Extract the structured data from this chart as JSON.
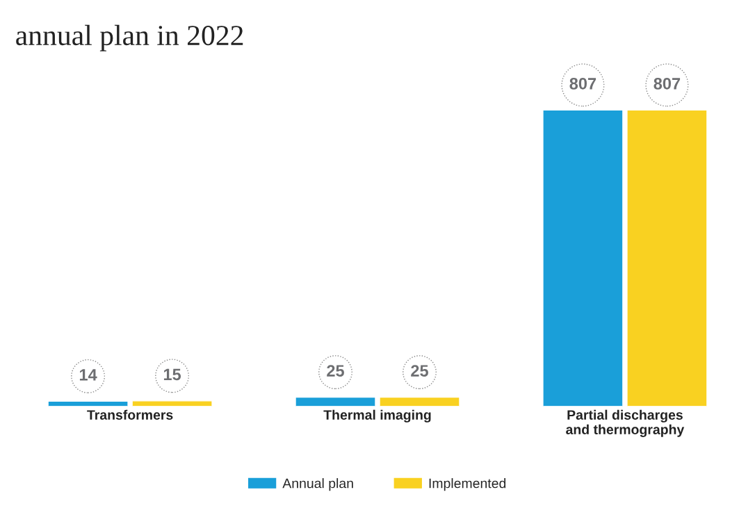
{
  "chart_data": {
    "type": "bar",
    "title": "annual plan in 2022",
    "categories": [
      "Transformers",
      "Thermal imaging",
      "Partial discharges\nand thermography"
    ],
    "series": [
      {
        "name": "Annual plan",
        "color": "#1a9fd9",
        "values": [
          14,
          25,
          807
        ]
      },
      {
        "name": "Implemented",
        "color": "#f9d121",
        "values": [
          15,
          25,
          807
        ]
      }
    ],
    "data_labels": true,
    "legend": "bottom",
    "grid": false,
    "tick_labels": "x"
  }
}
